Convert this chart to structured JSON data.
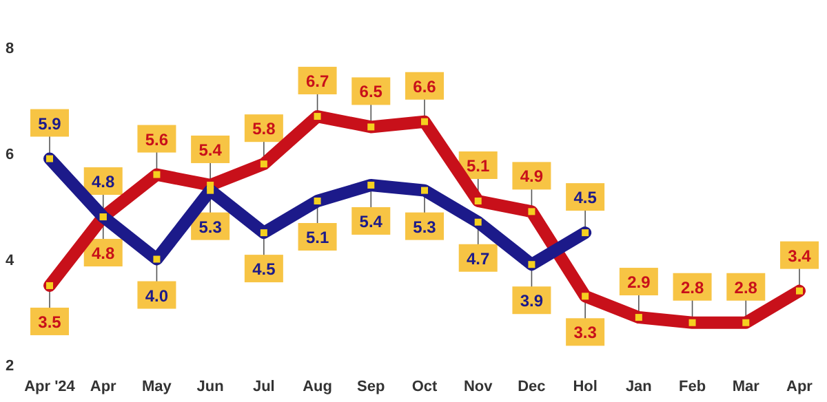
{
  "chart_data": {
    "type": "line",
    "categories": [
      "Apr '24",
      "Apr",
      "May",
      "Jun",
      "Jul",
      "Aug",
      "Sep",
      "Oct",
      "Nov",
      "Dec",
      "Hol",
      "Jan",
      "Feb",
      "Mar",
      "Apr"
    ],
    "series": [
      {
        "color": "#c8101a",
        "values": [
          3.5,
          4.8,
          5.6,
          5.4,
          5.8,
          6.7,
          6.5,
          6.6,
          5.1,
          4.9,
          3.3,
          2.9,
          2.8,
          2.8,
          3.4
        ],
        "value_labels": [
          "3.5",
          "4.8",
          "5.6",
          "5.4",
          "5.8",
          "6.7",
          "6.5",
          "6.6",
          "5.1",
          "4.9",
          "3.3",
          "2.9",
          "2.8",
          "2.8",
          "3.4"
        ]
      },
      {
        "color": "#1c1a8a",
        "values": [
          5.9,
          4.8,
          4.0,
          5.3,
          4.5,
          5.1,
          5.4,
          5.3,
          4.7,
          3.9,
          4.5,
          null,
          null,
          null,
          null
        ],
        "value_labels": [
          "5.9",
          "4.8",
          "4.0",
          "5.3",
          "4.5",
          "5.1",
          "5.4",
          "5.3",
          "4.7",
          "3.9",
          "4.5",
          null,
          null,
          null,
          null
        ]
      }
    ],
    "ylim": [
      1.3,
      8.9
    ],
    "yticks": [
      2,
      4,
      6,
      8
    ],
    "marker": "square",
    "line_style": "solid",
    "grid": false
  }
}
